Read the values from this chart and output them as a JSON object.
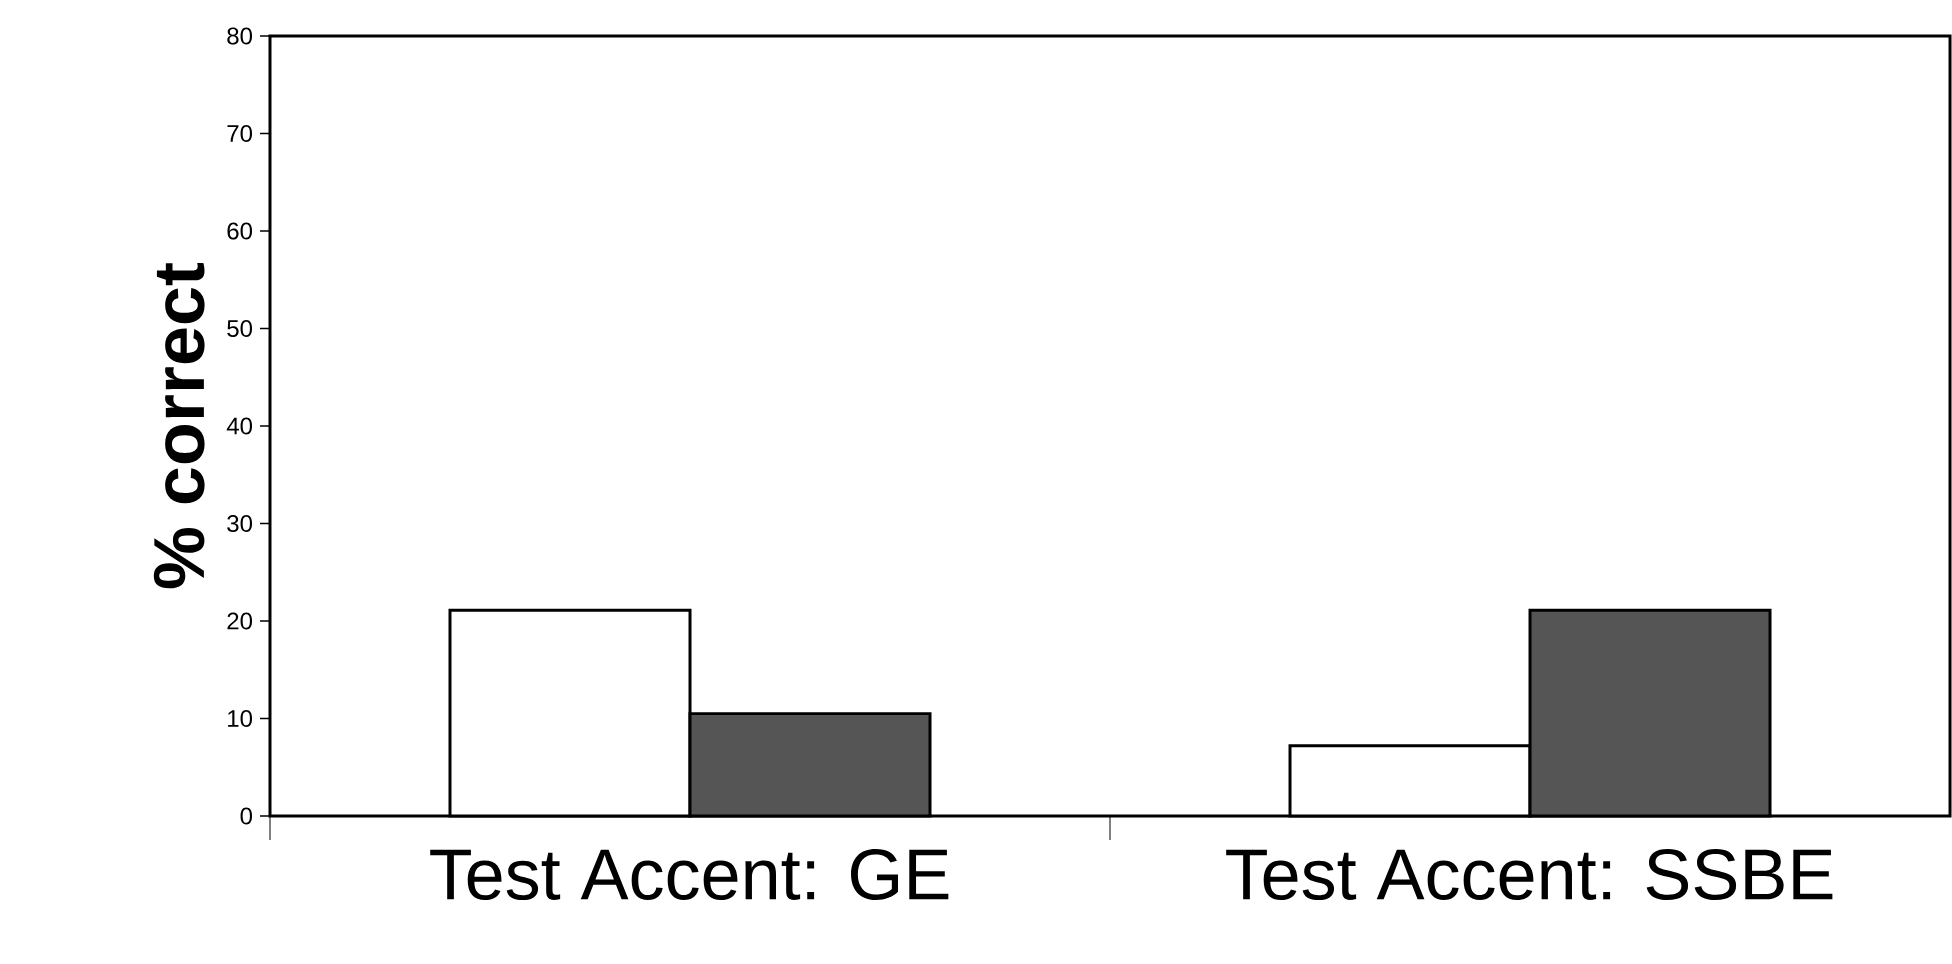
{
  "chart_data": {
    "type": "bar",
    "ylabel": "**% correct**",
    "categories": [
      "Test Accent: GE",
      "Test Accent: SSBE"
    ],
    "series": [
      {
        "color": "#ffffff",
        "values": [
          21.1,
          7.2
        ]
      },
      {
        "color": "#555555",
        "values": [
          10.5,
          21.1
        ]
      }
    ],
    "ylim": [
      0,
      80
    ],
    "yticks": [
      0,
      10,
      20,
      30,
      40,
      50,
      60,
      70,
      80
    ],
    "grid": false
  }
}
